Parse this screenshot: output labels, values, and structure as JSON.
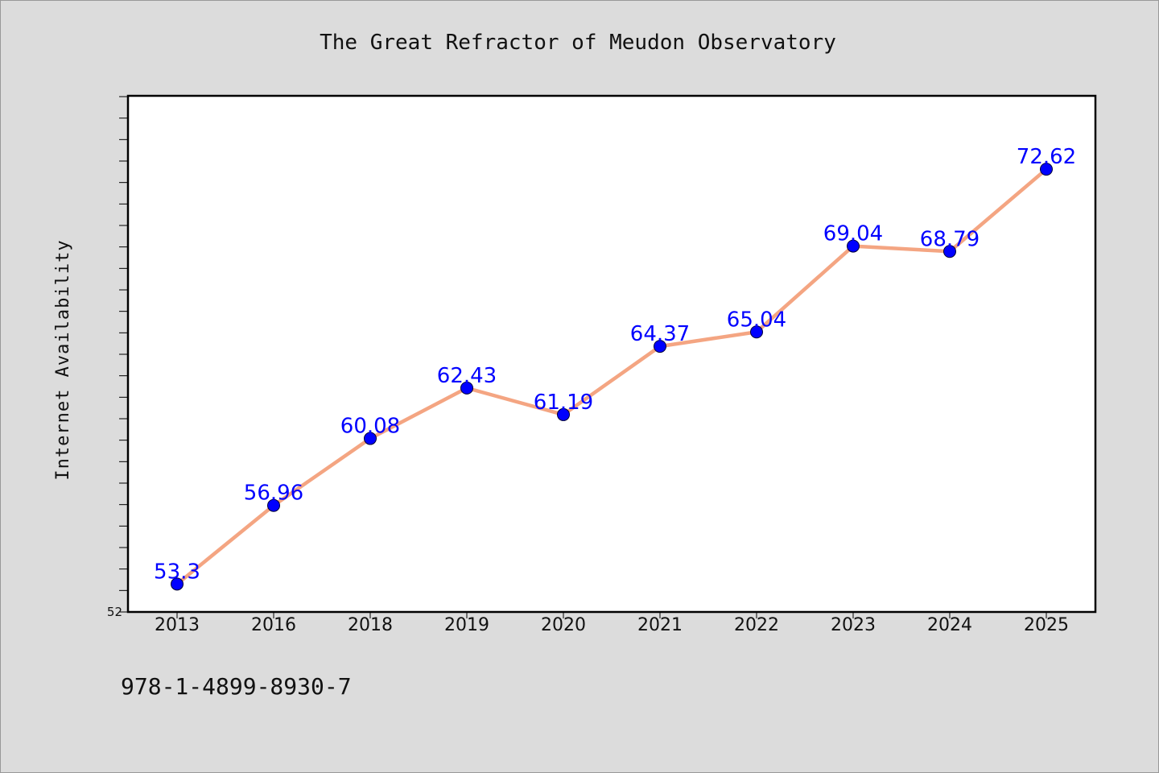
{
  "chart_data": {
    "type": "line",
    "title": "The Great Refractor of Meudon Observatory",
    "xlabel": "",
    "ylabel": "Internet Availability",
    "categories": [
      "2013",
      "2016",
      "2018",
      "2019",
      "2020",
      "2021",
      "2022",
      "2023",
      "2024",
      "2025"
    ],
    "series": [
      {
        "values": [
          53.3,
          56.96,
          60.08,
          62.43,
          61.19,
          64.37,
          65.04,
          69.04,
          68.79,
          72.62
        ],
        "labels": [
          "53.3",
          "56.96",
          "60.08",
          "62.43",
          "61.19",
          "64.37",
          "65.04",
          "69.04",
          "68.79",
          "72.62"
        ]
      }
    ],
    "yticks_labeled": [
      "52"
    ],
    "ylim": [
      52,
      76
    ],
    "minor_tick_step": 1,
    "grid": false,
    "colors": {
      "line": "#f4a582",
      "marker": "#0000ff",
      "labels": "#0000ff",
      "plot_bg": "#ffffff",
      "figure_bg": "#dcdcdc"
    }
  },
  "footer": {
    "isbn": "978-1-4899-8930-7"
  }
}
